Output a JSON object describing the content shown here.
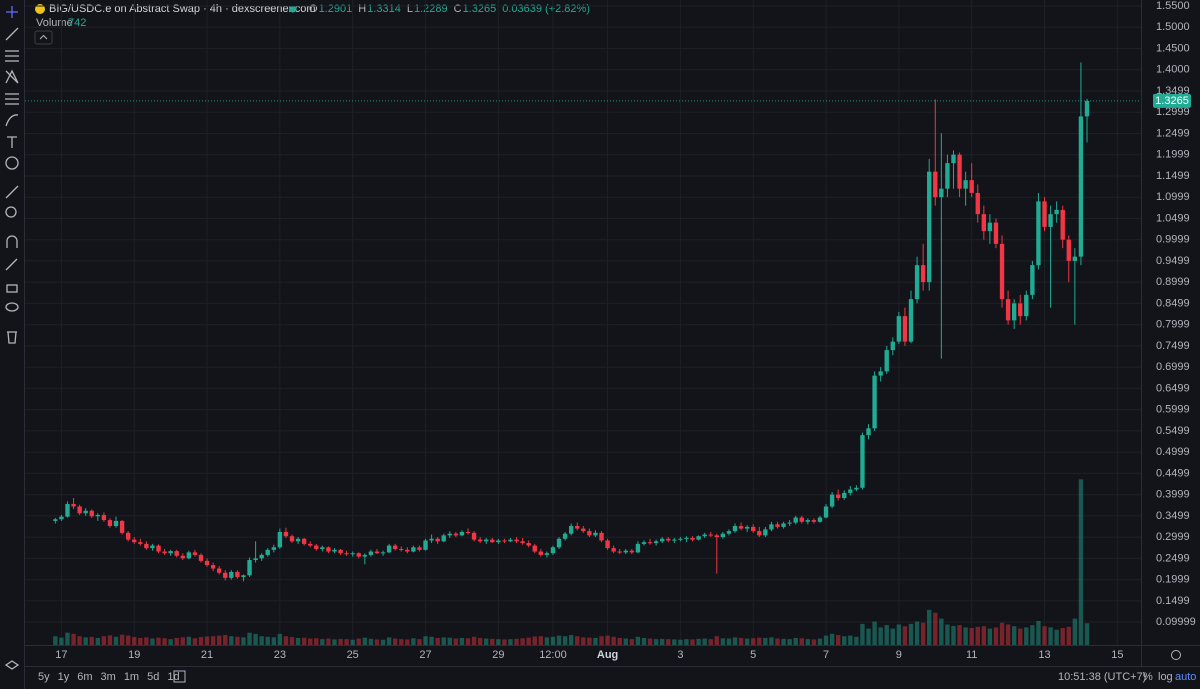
{
  "chart_data": {
    "type": "candlestick",
    "title": "BIG/USDC.e on Abstract Swap · 4h · dexscreener.com",
    "ohlc_labels": [
      "O",
      "H",
      "L",
      "C"
    ],
    "change": "0.03639 (+2.82%)",
    "volume_label": "Volume",
    "up_color": "#22ab94",
    "down_color": "#f23645",
    "grid": true,
    "ylim": [
      0.046,
      1.564
    ],
    "yticks": [
      {
        "value": 1.55,
        "label": "1.5500"
      },
      {
        "value": 1.5,
        "label": "1.5000"
      },
      {
        "value": 1.45,
        "label": "1.4500"
      },
      {
        "value": 1.4,
        "label": "1.4000"
      },
      1.3499,
      1.2999,
      1.2499,
      1.1999,
      1.1499,
      1.0999,
      1.0499,
      0.9999,
      0.9499,
      0.8999,
      0.8499,
      0.7999,
      0.7499,
      0.6999,
      0.6499,
      0.5999,
      0.5499,
      0.4999,
      0.4499,
      0.3999,
      0.3499,
      0.2999,
      0.2499,
      0.1999,
      0.1499,
      0.09999
    ],
    "xlim": [
      -5,
      178.9
    ],
    "xticks": [
      {
        "value": 1,
        "label": "17"
      },
      {
        "value": 13,
        "label": "19"
      },
      {
        "value": 25,
        "label": "21"
      },
      {
        "value": 37,
        "label": "23"
      },
      {
        "value": 49,
        "label": "25"
      },
      {
        "value": 61,
        "label": "27"
      },
      {
        "value": 73,
        "label": "29"
      },
      {
        "value": 82,
        "label": "12:00"
      },
      {
        "value": 91,
        "label": "Aug"
      },
      {
        "value": 103,
        "label": "3"
      },
      {
        "value": 115,
        "label": "5"
      },
      {
        "value": 127,
        "label": "7"
      },
      {
        "value": 139,
        "label": "9"
      },
      {
        "value": 151,
        "label": "11"
      },
      {
        "value": 163,
        "label": "13"
      },
      {
        "value": 175,
        "label": "15"
      }
    ],
    "volume_lim": [
      0,
      22000
    ],
    "ohlc": [
      [
        0.338,
        0.345,
        0.332,
        0.342
      ],
      [
        0.342,
        0.352,
        0.338,
        0.348
      ],
      [
        0.348,
        0.384,
        0.346,
        0.378
      ],
      [
        0.378,
        0.392,
        0.366,
        0.372
      ],
      [
        0.372,
        0.376,
        0.352,
        0.356
      ],
      [
        0.356,
        0.368,
        0.35,
        0.362
      ],
      [
        0.362,
        0.365,
        0.345,
        0.349
      ],
      [
        0.349,
        0.356,
        0.338,
        0.352
      ],
      [
        0.352,
        0.358,
        0.336,
        0.34
      ],
      [
        0.34,
        0.344,
        0.322,
        0.326
      ],
      [
        0.326,
        0.348,
        0.322,
        0.338
      ],
      [
        0.338,
        0.34,
        0.306,
        0.31
      ],
      [
        0.31,
        0.314,
        0.29,
        0.294
      ],
      [
        0.294,
        0.3,
        0.284,
        0.288
      ],
      [
        0.288,
        0.296,
        0.28,
        0.284
      ],
      [
        0.284,
        0.29,
        0.27,
        0.274
      ],
      [
        0.274,
        0.284,
        0.268,
        0.28
      ],
      [
        0.28,
        0.283,
        0.262,
        0.266
      ],
      [
        0.266,
        0.272,
        0.258,
        0.262
      ],
      [
        0.262,
        0.27,
        0.256,
        0.267
      ],
      [
        0.267,
        0.27,
        0.252,
        0.256
      ],
      [
        0.256,
        0.262,
        0.246,
        0.25
      ],
      [
        0.25,
        0.268,
        0.248,
        0.264
      ],
      [
        0.264,
        0.27,
        0.254,
        0.258
      ],
      [
        0.258,
        0.262,
        0.24,
        0.244
      ],
      [
        0.244,
        0.25,
        0.23,
        0.234
      ],
      [
        0.234,
        0.24,
        0.22,
        0.226
      ],
      [
        0.226,
        0.232,
        0.212,
        0.216
      ],
      [
        0.216,
        0.222,
        0.198,
        0.204
      ],
      [
        0.204,
        0.222,
        0.2,
        0.218
      ],
      [
        0.218,
        0.222,
        0.202,
        0.206
      ],
      [
        0.206,
        0.212,
        0.196,
        0.21
      ],
      [
        0.21,
        0.252,
        0.206,
        0.246
      ],
      [
        0.246,
        0.29,
        0.24,
        0.25
      ],
      [
        0.25,
        0.262,
        0.244,
        0.258
      ],
      [
        0.258,
        0.274,
        0.254,
        0.27
      ],
      [
        0.27,
        0.282,
        0.264,
        0.276
      ],
      [
        0.276,
        0.32,
        0.272,
        0.312
      ],
      [
        0.312,
        0.322,
        0.298,
        0.302
      ],
      [
        0.302,
        0.306,
        0.286,
        0.29
      ],
      [
        0.29,
        0.3,
        0.284,
        0.296
      ],
      [
        0.296,
        0.298,
        0.28,
        0.284
      ],
      [
        0.284,
        0.29,
        0.276,
        0.28
      ],
      [
        0.28,
        0.284,
        0.268,
        0.272
      ],
      [
        0.272,
        0.28,
        0.266,
        0.276
      ],
      [
        0.276,
        0.278,
        0.262,
        0.266
      ],
      [
        0.266,
        0.274,
        0.262,
        0.27
      ],
      [
        0.27,
        0.272,
        0.258,
        0.262
      ],
      [
        0.262,
        0.268,
        0.256,
        0.26
      ],
      [
        0.26,
        0.266,
        0.254,
        0.262
      ],
      [
        0.262,
        0.264,
        0.25,
        0.254
      ],
      [
        0.254,
        0.262,
        0.236,
        0.258
      ],
      [
        0.258,
        0.27,
        0.254,
        0.266
      ],
      [
        0.266,
        0.272,
        0.26,
        0.262
      ],
      [
        0.262,
        0.268,
        0.256,
        0.264
      ],
      [
        0.264,
        0.284,
        0.262,
        0.28
      ],
      [
        0.28,
        0.284,
        0.268,
        0.272
      ],
      [
        0.272,
        0.278,
        0.266,
        0.27
      ],
      [
        0.27,
        0.276,
        0.262,
        0.266
      ],
      [
        0.266,
        0.28,
        0.264,
        0.276
      ],
      [
        0.276,
        0.28,
        0.266,
        0.27
      ],
      [
        0.27,
        0.296,
        0.268,
        0.292
      ],
      [
        0.292,
        0.306,
        0.286,
        0.296
      ],
      [
        0.296,
        0.3,
        0.284,
        0.29
      ],
      [
        0.29,
        0.308,
        0.288,
        0.304
      ],
      [
        0.304,
        0.314,
        0.298,
        0.308
      ],
      [
        0.308,
        0.312,
        0.3,
        0.304
      ],
      [
        0.304,
        0.316,
        0.302,
        0.312
      ],
      [
        0.312,
        0.32,
        0.306,
        0.31
      ],
      [
        0.31,
        0.314,
        0.29,
        0.294
      ],
      [
        0.294,
        0.3,
        0.286,
        0.29
      ],
      [
        0.29,
        0.298,
        0.284,
        0.294
      ],
      [
        0.294,
        0.298,
        0.286,
        0.288
      ],
      [
        0.288,
        0.296,
        0.284,
        0.292
      ],
      [
        0.292,
        0.296,
        0.286,
        0.29
      ],
      [
        0.29,
        0.298,
        0.288,
        0.294
      ],
      [
        0.294,
        0.3,
        0.286,
        0.29
      ],
      [
        0.29,
        0.298,
        0.282,
        0.286
      ],
      [
        0.286,
        0.292,
        0.276,
        0.28
      ],
      [
        0.28,
        0.284,
        0.262,
        0.266
      ],
      [
        0.266,
        0.272,
        0.254,
        0.258
      ],
      [
        0.258,
        0.266,
        0.252,
        0.262
      ],
      [
        0.262,
        0.28,
        0.258,
        0.276
      ],
      [
        0.276,
        0.3,
        0.272,
        0.296
      ],
      [
        0.296,
        0.312,
        0.292,
        0.308
      ],
      [
        0.308,
        0.332,
        0.304,
        0.326
      ],
      [
        0.326,
        0.334,
        0.316,
        0.32
      ],
      [
        0.32,
        0.326,
        0.31,
        0.314
      ],
      [
        0.314,
        0.32,
        0.3,
        0.304
      ],
      [
        0.304,
        0.316,
        0.3,
        0.31
      ],
      [
        0.31,
        0.314,
        0.288,
        0.292
      ],
      [
        0.292,
        0.296,
        0.27,
        0.274
      ],
      [
        0.274,
        0.28,
        0.262,
        0.266
      ],
      [
        0.266,
        0.272,
        0.26,
        0.264
      ],
      [
        0.264,
        0.272,
        0.26,
        0.268
      ],
      [
        0.268,
        0.272,
        0.26,
        0.264
      ],
      [
        0.264,
        0.29,
        0.262,
        0.284
      ],
      [
        0.284,
        0.292,
        0.28,
        0.288
      ],
      [
        0.288,
        0.296,
        0.282,
        0.286
      ],
      [
        0.286,
        0.294,
        0.28,
        0.29
      ],
      [
        0.29,
        0.3,
        0.286,
        0.296
      ],
      [
        0.296,
        0.3,
        0.288,
        0.292
      ],
      [
        0.292,
        0.298,
        0.286,
        0.294
      ],
      [
        0.294,
        0.3,
        0.29,
        0.296
      ],
      [
        0.296,
        0.302,
        0.288,
        0.298
      ],
      [
        0.298,
        0.302,
        0.29,
        0.294
      ],
      [
        0.294,
        0.304,
        0.292,
        0.302
      ],
      [
        0.302,
        0.31,
        0.298,
        0.306
      ],
      [
        0.306,
        0.312,
        0.3,
        0.304
      ],
      [
        0.304,
        0.308,
        0.214,
        0.3
      ],
      [
        0.3,
        0.312,
        0.296,
        0.308
      ],
      [
        0.308,
        0.318,
        0.304,
        0.314
      ],
      [
        0.314,
        0.332,
        0.31,
        0.326
      ],
      [
        0.326,
        0.334,
        0.316,
        0.32
      ],
      [
        0.32,
        0.328,
        0.312,
        0.324
      ],
      [
        0.324,
        0.33,
        0.31,
        0.314
      ],
      [
        0.314,
        0.324,
        0.3,
        0.304
      ],
      [
        0.304,
        0.324,
        0.3,
        0.318
      ],
      [
        0.318,
        0.336,
        0.314,
        0.33
      ],
      [
        0.33,
        0.336,
        0.32,
        0.324
      ],
      [
        0.324,
        0.336,
        0.32,
        0.332
      ],
      [
        0.332,
        0.34,
        0.326,
        0.334
      ],
      [
        0.334,
        0.35,
        0.33,
        0.346
      ],
      [
        0.346,
        0.35,
        0.332,
        0.336
      ],
      [
        0.336,
        0.344,
        0.33,
        0.34
      ],
      [
        0.34,
        0.344,
        0.332,
        0.336
      ],
      [
        0.336,
        0.35,
        0.334,
        0.346
      ],
      [
        0.346,
        0.378,
        0.344,
        0.372
      ],
      [
        0.372,
        0.406,
        0.368,
        0.4
      ],
      [
        0.4,
        0.412,
        0.386,
        0.392
      ],
      [
        0.392,
        0.41,
        0.388,
        0.404
      ],
      [
        0.404,
        0.42,
        0.398,
        0.412
      ],
      [
        0.412,
        0.422,
        0.408,
        0.416
      ],
      [
        0.416,
        0.546,
        0.412,
        0.54
      ],
      [
        0.54,
        0.566,
        0.53,
        0.556
      ],
      [
        0.556,
        0.69,
        0.55,
        0.68
      ],
      [
        0.68,
        0.7,
        0.666,
        0.69
      ],
      [
        0.69,
        0.75,
        0.684,
        0.74
      ],
      [
        0.74,
        0.77,
        0.728,
        0.76
      ],
      [
        0.76,
        0.83,
        0.754,
        0.82
      ],
      [
        0.82,
        0.84,
        0.75,
        0.76
      ],
      [
        0.76,
        0.88,
        0.756,
        0.86
      ],
      [
        0.86,
        0.96,
        0.85,
        0.94
      ],
      [
        0.94,
        0.99,
        0.88,
        0.9
      ],
      [
        0.9,
        1.19,
        0.88,
        1.16
      ],
      [
        1.16,
        1.33,
        1.08,
        1.1
      ],
      [
        1.1,
        1.25,
        0.72,
        1.12
      ],
      [
        1.12,
        1.2,
        1.1,
        1.18
      ],
      [
        1.18,
        1.21,
        1.12,
        1.2
      ],
      [
        1.2,
        1.205,
        1.1,
        1.12
      ],
      [
        1.12,
        1.16,
        1.08,
        1.14
      ],
      [
        1.14,
        1.18,
        1.1,
        1.11
      ],
      [
        1.11,
        1.13,
        1.04,
        1.06
      ],
      [
        1.06,
        1.08,
        1.0,
        1.02
      ],
      [
        1.02,
        1.06,
        0.99,
        1.04
      ],
      [
        1.04,
        1.05,
        0.98,
        0.99
      ],
      [
        0.99,
        1.01,
        0.84,
        0.86
      ],
      [
        0.86,
        0.88,
        0.8,
        0.81
      ],
      [
        0.81,
        0.86,
        0.79,
        0.85
      ],
      [
        0.85,
        0.87,
        0.8,
        0.82
      ],
      [
        0.82,
        0.88,
        0.81,
        0.87
      ],
      [
        0.87,
        0.95,
        0.86,
        0.94
      ],
      [
        0.94,
        1.11,
        0.93,
        1.09
      ],
      [
        1.09,
        1.1,
        1.02,
        1.03
      ],
      [
        1.03,
        1.08,
        0.84,
        1.06
      ],
      [
        1.06,
        1.09,
        1.04,
        1.07
      ],
      [
        1.07,
        1.08,
        0.98,
        1.0
      ],
      [
        1.0,
        1.01,
        0.9,
        0.95
      ],
      [
        0.95,
        0.98,
        0.8,
        0.96
      ],
      [
        0.96,
        1.417,
        0.94,
        1.29
      ],
      [
        1.2901,
        1.3314,
        1.2289,
        1.3265
      ]
    ],
    "volume": [
      300,
      250,
      420,
      380,
      300,
      260,
      280,
      240,
      300,
      330,
      280,
      350,
      320,
      270,
      240,
      260,
      220,
      250,
      230,
      200,
      240,
      260,
      280,
      230,
      270,
      290,
      300,
      320,
      340,
      300,
      280,
      260,
      420,
      380,
      300,
      280,
      260,
      380,
      300,
      270,
      240,
      250,
      220,
      230,
      200,
      220,
      190,
      210,
      200,
      180,
      220,
      250,
      210,
      190,
      180,
      260,
      220,
      200,
      190,
      230,
      200,
      300,
      280,
      240,
      260,
      250,
      220,
      240,
      230,
      280,
      240,
      220,
      210,
      200,
      190,
      200,
      210,
      230,
      250,
      290,
      300,
      260,
      280,
      320,
      300,
      340,
      300,
      260,
      250,
      240,
      300,
      320,
      280,
      240,
      220,
      200,
      280,
      240,
      220,
      200,
      210,
      200,
      190,
      180,
      200,
      190,
      210,
      220,
      200,
      300,
      230,
      220,
      260,
      240,
      220,
      230,
      250,
      240,
      260,
      220,
      210,
      200,
      240,
      230,
      200,
      190,
      220,
      320,
      380,
      340,
      300,
      320,
      280,
      720,
      560,
      800,
      600,
      680,
      560,
      700,
      640,
      720,
      800,
      760,
      1200,
      1100,
      900,
      700,
      650,
      680,
      600,
      580,
      620,
      640,
      560,
      600,
      760,
      700,
      640,
      560,
      600,
      680,
      820,
      640,
      600,
      520,
      580,
      620,
      900,
      5650,
      742
    ]
  },
  "ui": {
    "ranges": [
      "5y",
      "1y",
      "6m",
      "3m",
      "1m",
      "5d",
      "1d"
    ],
    "clock": "10:51:38 (UTC+7)",
    "scale_buttons": [
      "%",
      "log",
      "auto"
    ]
  }
}
